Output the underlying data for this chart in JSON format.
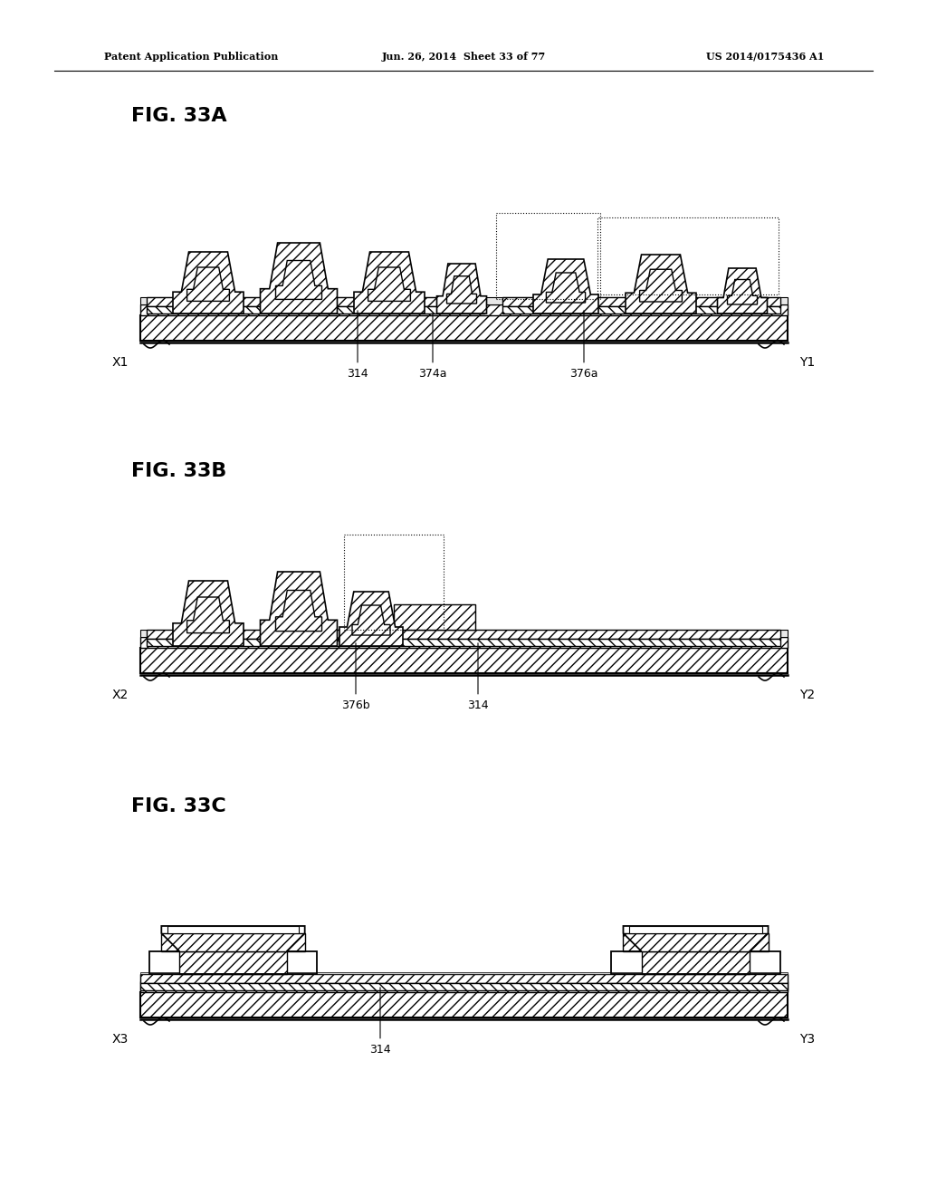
{
  "header_left": "Patent Application Publication",
  "header_mid": "Jun. 26, 2014  Sheet 33 of 77",
  "header_right": "US 2014/0175436 A1",
  "fig_labels": [
    "FIG. 33A",
    "FIG. 33B",
    "FIG. 33C"
  ],
  "bg_color": "#ffffff"
}
